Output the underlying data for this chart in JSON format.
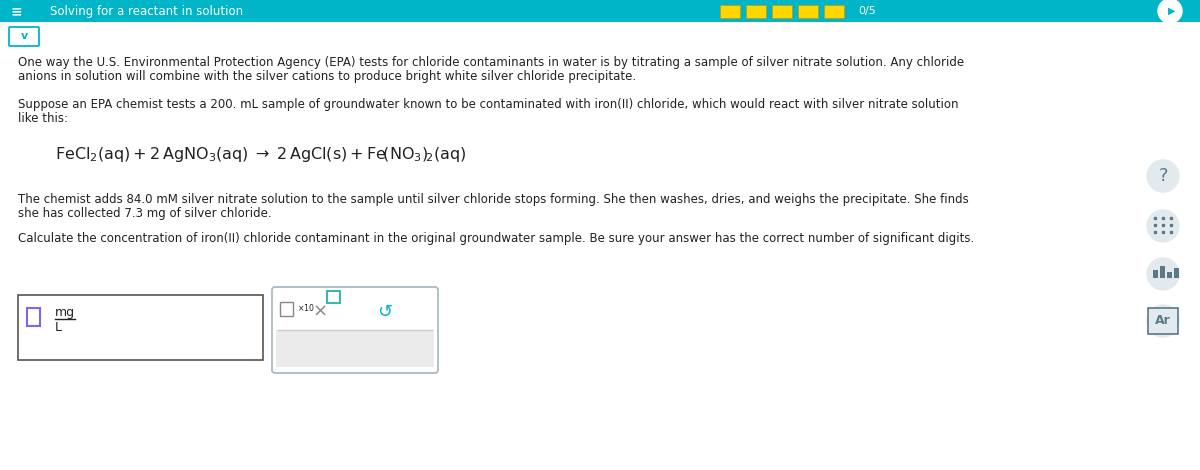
{
  "title": "Solving for a reactant in solution",
  "title_bar_color": "#00B5C8",
  "title_text_color": "#ffffff",
  "background_color": "#ffffff",
  "body_text_color": "#222222",
  "para1_line1": "One way the U.S. Environmental Protection Agency (EPA) tests for chloride contaminants in water is by titrating a sample of silver nitrate solution. Any chloride",
  "para1_line2": "anions in solution will combine with the silver cations to produce bright white silver chloride precipitate.",
  "para2_line1": "Suppose an EPA chemist tests a 200. mL sample of groundwater known to be contaminated with iron(II) chloride, which would react with silver nitrate solution",
  "para2_line2": "like this:",
  "para3_line1": "The chemist adds 84.0 mM silver nitrate solution to the sample until silver chloride stops forming. She then washes, dries, and weighs the precipitate. She finds",
  "para3_line2": "she has collected 7.3 mg of silver chloride.",
  "para4": "Calculate the concentration of iron(II) chloride contaminant in the original groundwater sample. Be sure your answer has the correct number of significant digits.",
  "score_text": "0/5",
  "title_bar_color_score_boxes": "#FFD700",
  "chevron_color": "#00B5C8",
  "chevron_border_color": "#00B5C8",
  "sidebar_icon_color": "#5a7a8a",
  "sidebar_bg_color": "#e2eaed",
  "input_border_color": "#555555",
  "sci_box_border_color": "#aabbc5",
  "sci_box_bg": "#f5f5f5",
  "checkbox_border_purple": "#7B68EE",
  "checkbox_border_teal": "#20B2AA",
  "x_button_color": "#888888",
  "redo_button_color": "#00B5C8",
  "fraction_line_color": "#222222"
}
